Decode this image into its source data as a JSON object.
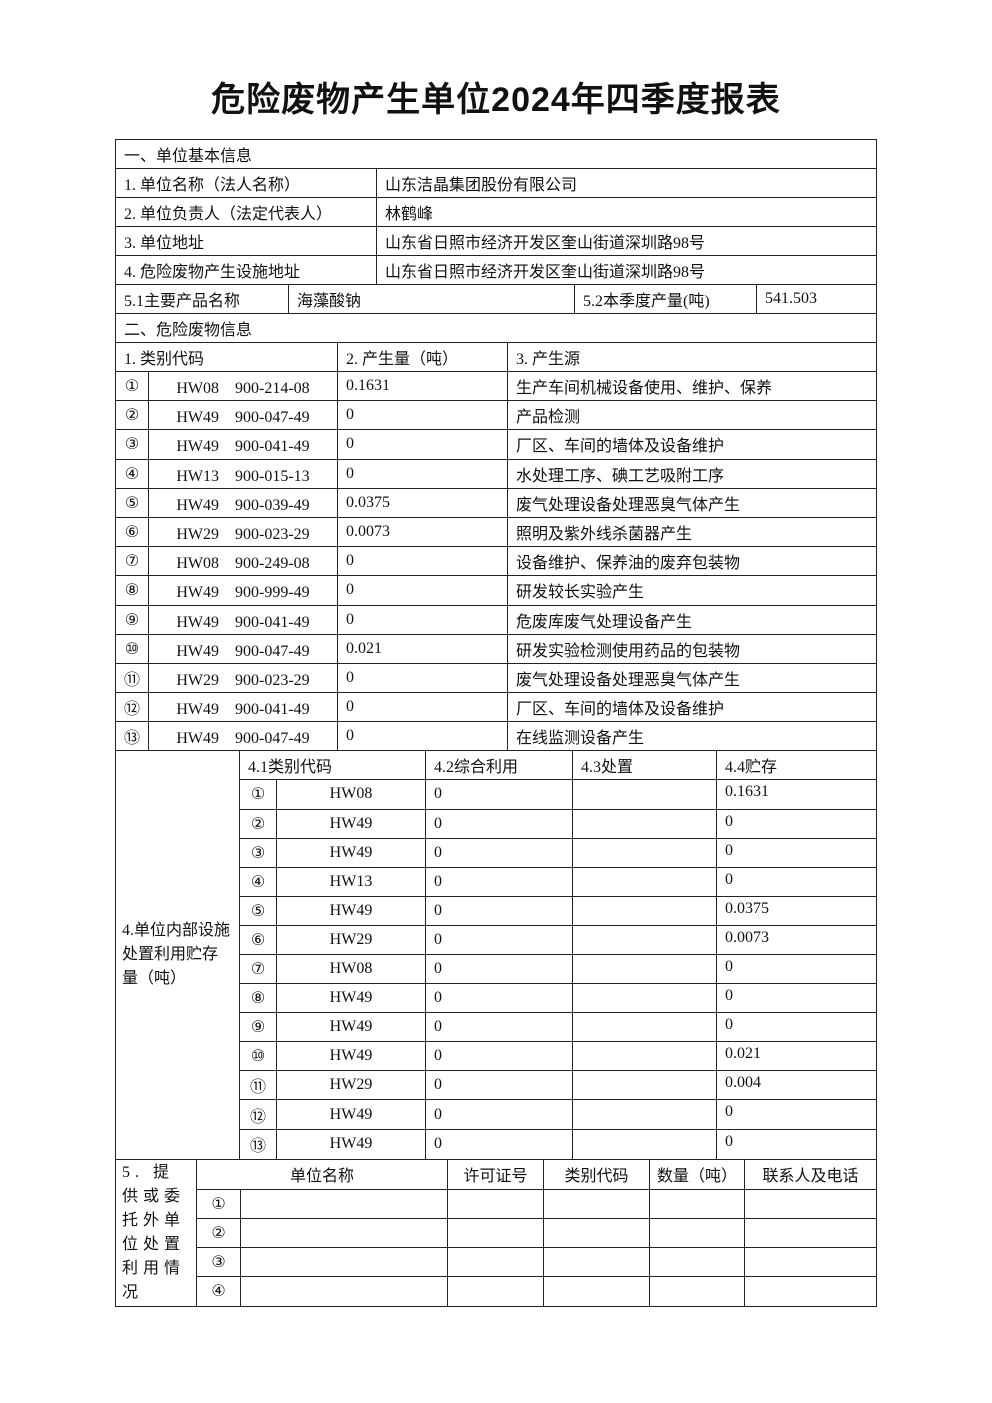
{
  "title": "危险废物产生单位2024年四季度报表",
  "basic": {
    "section_title": "一、单位基本信息",
    "rows": [
      {
        "label": "1. 单位名称（法人名称）",
        "value": "山东洁晶集团股份有限公司"
      },
      {
        "label": "2. 单位负责人（法定代表人）",
        "value": "林鹤峰"
      },
      {
        "label": "3. 单位地址",
        "value": "山东省日照市经济开发区奎山街道深圳路98号"
      },
      {
        "label": "4. 危险废物产生设施地址",
        "value": "山东省日照市经济开发区奎山街道深圳路98号"
      }
    ],
    "product_label": "5.1主要产品名称",
    "product_value": "海藻酸钠",
    "output_label": "5.2本季度产量(吨)",
    "output_value": "541.503"
  },
  "waste": {
    "section_title": "二、危险废物信息",
    "headers": [
      "1. 类别代码",
      "2. 产生量（吨）",
      "3. 产生源"
    ],
    "rows": [
      {
        "no": "①",
        "code": "HW08　900-214-08",
        "amount": "0.1631",
        "source": "生产车间机械设备使用、维护、保养"
      },
      {
        "no": "②",
        "code": "HW49　900-047-49",
        "amount": "0",
        "source": "产品检测"
      },
      {
        "no": "③",
        "code": "HW49　900-041-49",
        "amount": "0",
        "source": "厂区、车间的墙体及设备维护"
      },
      {
        "no": "④",
        "code": "HW13　900-015-13",
        "amount": "0",
        "source": "水处理工序、碘工艺吸附工序"
      },
      {
        "no": "⑤",
        "code": "HW49　900-039-49",
        "amount": "0.0375",
        "source": "废气处理设备处理恶臭气体产生"
      },
      {
        "no": "⑥",
        "code": "HW29　900-023-29",
        "amount": "0.0073",
        "source": "照明及紫外线杀菌器产生"
      },
      {
        "no": "⑦",
        "code": "HW08　900-249-08",
        "amount": "0",
        "source": "设备维护、保养油的废弃包装物"
      },
      {
        "no": "⑧",
        "code": "HW49　900-999-49",
        "amount": "0",
        "source": "研发较长实验产生"
      },
      {
        "no": "⑨",
        "code": "HW49　900-041-49",
        "amount": "0",
        "source": "危废库废气处理设备产生"
      },
      {
        "no": "⑩",
        "code": "HW49　900-047-49",
        "amount": "0.021",
        "source": "研发实验检测使用药品的包装物"
      },
      {
        "no": "⑪",
        "code": "HW29　900-023-29",
        "amount": "0",
        "source": "废气处理设备处理恶臭气体产生"
      },
      {
        "no": "⑫",
        "code": "HW49　900-041-49",
        "amount": "0",
        "source": "厂区、车间的墙体及设备维护"
      },
      {
        "no": "⑬",
        "code": "HW49　900-047-49",
        "amount": "0",
        "source": "在线监测设备产生"
      }
    ]
  },
  "internal": {
    "label": "4.单位内部设施处置利用贮存量（吨）",
    "headers": [
      "4.1类别代码",
      "4.2综合利用",
      "4.3处置",
      "4.4贮存"
    ],
    "rows": [
      {
        "no": "①",
        "code": "HW08",
        "use": "0",
        "disposal": "",
        "storage": "0.1631"
      },
      {
        "no": "②",
        "code": "HW49",
        "use": "0",
        "disposal": "",
        "storage": "0"
      },
      {
        "no": "③",
        "code": "HW49",
        "use": "0",
        "disposal": "",
        "storage": "0"
      },
      {
        "no": "④",
        "code": "HW13",
        "use": "0",
        "disposal": "",
        "storage": "0"
      },
      {
        "no": "⑤",
        "code": "HW49",
        "use": "0",
        "disposal": "",
        "storage": "0.0375"
      },
      {
        "no": "⑥",
        "code": "HW29",
        "use": "0",
        "disposal": "",
        "storage": "0.0073"
      },
      {
        "no": "⑦",
        "code": "HW08",
        "use": "0",
        "disposal": "",
        "storage": "0"
      },
      {
        "no": "⑧",
        "code": "HW49",
        "use": "0",
        "disposal": "",
        "storage": "0"
      },
      {
        "no": "⑨",
        "code": "HW49",
        "use": "0",
        "disposal": "",
        "storage": "0"
      },
      {
        "no": "⑩",
        "code": "HW49",
        "use": "0",
        "disposal": "",
        "storage": "0.021"
      },
      {
        "no": "⑪",
        "code": "HW29",
        "use": "0",
        "disposal": "",
        "storage": "0.004"
      },
      {
        "no": "⑫",
        "code": "HW49",
        "use": "0",
        "disposal": "",
        "storage": "0"
      },
      {
        "no": "⑬",
        "code": "HW49",
        "use": "0",
        "disposal": "",
        "storage": "0"
      }
    ]
  },
  "external": {
    "label": "5. 提供或委托外单位处置利用情况",
    "headers": [
      "单位名称",
      "许可证号",
      "类别代码",
      "数量（吨）",
      "联系人及电话"
    ],
    "rows": [
      {
        "no": "①"
      },
      {
        "no": "②"
      },
      {
        "no": "③"
      },
      {
        "no": "④"
      }
    ]
  }
}
